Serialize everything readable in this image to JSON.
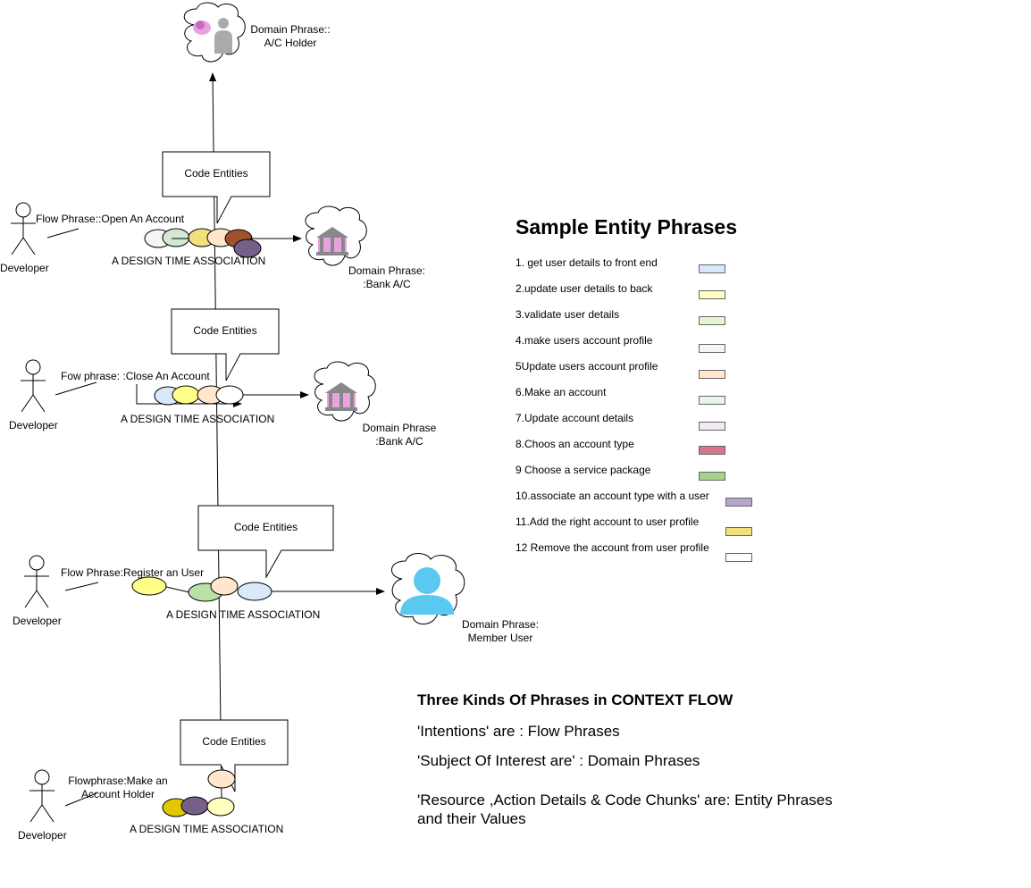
{
  "diagram": {
    "domain_top": {
      "label_line1": "Domain  Phrase::",
      "label_line2": "A/C Holder"
    },
    "rows": [
      {
        "actor_label": "Developer",
        "flow_label": "Flow Phrase::Open An Account",
        "callout_label": "Code Entities",
        "association_label": "A DESIGN TIME ASSOCIATION",
        "domain_line1": "Domain Phrase:",
        "domain_line2": ":Bank A/C"
      },
      {
        "actor_label": "Developer",
        "flow_label": "Fow phrase: :Close An Account",
        "callout_label": "Code Entities",
        "association_label": "A DESIGN TIME ASSOCIATION",
        "domain_line1": "Domain Phrase",
        "domain_line2": ":Bank A/C"
      },
      {
        "actor_label": "Developer",
        "flow_label": "Flow Phrase:Register an User",
        "callout_label": "Code Entities",
        "association_label": "A DESIGN TIME ASSOCIATION",
        "domain_line1": "Domain Phrase:",
        "domain_line2": "Member User"
      },
      {
        "actor_label": "Developer",
        "flow_label_line1": "Flowphrase:Make an",
        "flow_label_line2": "Account Holder",
        "callout_label": "Code Entities",
        "association_label": "A DESIGN TIME ASSOCIATION"
      }
    ]
  },
  "legend": {
    "title": "Sample Entity Phrases",
    "items": [
      {
        "label": "1. get user details to front end",
        "color": "#dae8fc"
      },
      {
        "label": "2.update user details to back",
        "color": "#ffffc0"
      },
      {
        "label": "3.validate user details",
        "color": "#e6f5cf"
      },
      {
        "label": "4.make users account profile",
        "color": "#f5f5f5"
      },
      {
        "label": "5Update users account profile",
        "color": "#ffe6cc"
      },
      {
        "label": "6.Make an account",
        "color": "#e8f5e9"
      },
      {
        "label": "7.Update account details",
        "color": "#f3eaf5"
      },
      {
        "label": "8.Choos an account type",
        "color": "#d87587"
      },
      {
        "label": "9 Choose a service package",
        "color": "#a9d18e"
      },
      {
        "label": "10.associate an account type with a user",
        "color": "#b7a6c9"
      },
      {
        "label": "11.Add the right account to user profile",
        "color": "#f2e07c"
      },
      {
        "label": "12 Remove the account from user profile",
        "color": "#ffffff"
      }
    ]
  },
  "notes": {
    "title": "Three Kinds Of Phrases in CONTEXT FLOW",
    "line1": "'Intentions' are : Flow Phrases",
    "line2": "'Subject Of Interest are' : Domain Phrases",
    "line3a": "'Resource ,Action Details & Code Chunks' are: Entity Phrases",
    "line3b": "and their Values"
  }
}
